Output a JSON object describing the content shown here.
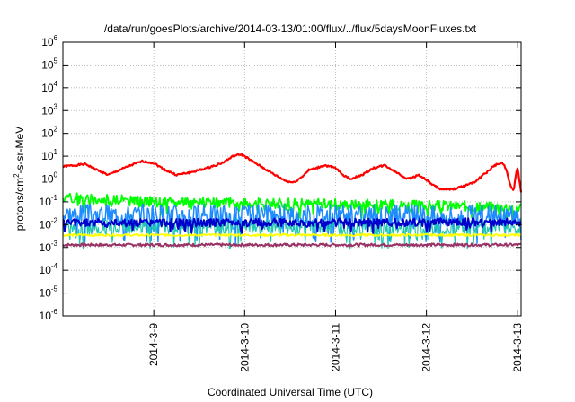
{
  "chart_data": {
    "type": "line",
    "title": "/data/run/goesPlots/archive/2014-03-13/01:00/flux/../flux/5daysMoonFluxes.txt",
    "xlabel": "Coordinated Universal Time (UTC)",
    "ylabel": {
      "base": "protons/cm",
      "exp": "2",
      "rest": "-s-sr-MeV"
    },
    "yscale": "log",
    "ylim": [
      1e-06,
      1000000.0
    ],
    "xlim": [
      "2014-03-08T00:00",
      "2014-03-13T01:00"
    ],
    "grid": true,
    "yticks": [
      {
        "value": 1e-06,
        "base": "10",
        "exp": "-6"
      },
      {
        "value": 1e-05,
        "base": "10",
        "exp": "-5"
      },
      {
        "value": 0.0001,
        "base": "10",
        "exp": "-4"
      },
      {
        "value": 0.001,
        "base": "10",
        "exp": "-3"
      },
      {
        "value": 0.01,
        "base": "10",
        "exp": "-2"
      },
      {
        "value": 0.1,
        "base": "10",
        "exp": "-1"
      },
      {
        "value": 1,
        "base": "10",
        "exp": "0"
      },
      {
        "value": 10,
        "base": "10",
        "exp": "1"
      },
      {
        "value": 100,
        "base": "10",
        "exp": "2"
      },
      {
        "value": 1000,
        "base": "10",
        "exp": "3"
      },
      {
        "value": 10000,
        "base": "10",
        "exp": "4"
      },
      {
        "value": 100000,
        "base": "10",
        "exp": "5"
      },
      {
        "value": 1000000,
        "base": "10",
        "exp": "6"
      }
    ],
    "xticks": [
      {
        "date": "2014-03-09T00:00",
        "label": "2014-3-9"
      },
      {
        "date": "2014-03-10T00:00",
        "label": "2014-3-10"
      },
      {
        "date": "2014-03-11T00:00",
        "label": "2014-3-11"
      },
      {
        "date": "2014-03-12T00:00",
        "label": "2014-3-12"
      },
      {
        "date": "2014-03-13T00:00",
        "label": "2014-3-13"
      }
    ],
    "series": [
      {
        "color": "#ff0000",
        "width": 2.2,
        "baseline": 2.0,
        "jitter": 0.08,
        "seed": 1,
        "points": [
          [
            "2014-03-08T00:00",
            3.5
          ],
          [
            "2014-03-08T03:00",
            4.0
          ],
          [
            "2014-03-08T06:00",
            4.5
          ],
          [
            "2014-03-08T09:00",
            2.5
          ],
          [
            "2014-03-08T12:00",
            1.5
          ],
          [
            "2014-03-08T15:00",
            2.5
          ],
          [
            "2014-03-08T18:00",
            4.0
          ],
          [
            "2014-03-08T21:00",
            6.0
          ],
          [
            "2014-03-09T00:00",
            5.0
          ],
          [
            "2014-03-09T03:00",
            2.5
          ],
          [
            "2014-03-09T06:00",
            1.5
          ],
          [
            "2014-03-09T10:00",
            2.0
          ],
          [
            "2014-03-09T14:00",
            3.0
          ],
          [
            "2014-03-09T18:00",
            5.0
          ],
          [
            "2014-03-09T21:00",
            10.0
          ],
          [
            "2014-03-09T23:00",
            12.0
          ],
          [
            "2014-03-10T00:00",
            10.0
          ],
          [
            "2014-03-10T02:00",
            6.0
          ],
          [
            "2014-03-10T05:00",
            3.0
          ],
          [
            "2014-03-10T08:00",
            1.5
          ],
          [
            "2014-03-10T11:00",
            0.8
          ],
          [
            "2014-03-10T13:00",
            0.7
          ],
          [
            "2014-03-10T15:00",
            1.2
          ],
          [
            "2014-03-10T17:00",
            2.5
          ],
          [
            "2014-03-10T19:00",
            3.0
          ],
          [
            "2014-03-10T21:00",
            4.0
          ],
          [
            "2014-03-11T00:00",
            3.0
          ],
          [
            "2014-03-11T02:00",
            1.5
          ],
          [
            "2014-03-11T04:00",
            1.0
          ],
          [
            "2014-03-11T07:00",
            1.5
          ],
          [
            "2014-03-11T10:00",
            3.0
          ],
          [
            "2014-03-11T13:00",
            4.0
          ],
          [
            "2014-03-11T16:00",
            2.0
          ],
          [
            "2014-03-11T19:00",
            1.0
          ],
          [
            "2014-03-11T22:00",
            1.5
          ],
          [
            "2014-03-12T00:00",
            0.9
          ],
          [
            "2014-03-12T02:00",
            0.5
          ],
          [
            "2014-03-12T04:00",
            0.35
          ],
          [
            "2014-03-12T07:00",
            0.35
          ],
          [
            "2014-03-12T10:00",
            0.5
          ],
          [
            "2014-03-12T13:00",
            0.8
          ],
          [
            "2014-03-12T16:00",
            2.0
          ],
          [
            "2014-03-12T18:00",
            4.0
          ],
          [
            "2014-03-12T20:00",
            5.0
          ],
          [
            "2014-03-12T21:00",
            3.0
          ],
          [
            "2014-03-12T22:00",
            0.6
          ],
          [
            "2014-03-12T23:00",
            0.3
          ],
          [
            "2014-03-13T00:00",
            3.5
          ],
          [
            "2014-03-13T00:30",
            1.0
          ],
          [
            "2014-03-13T01:00",
            0.25
          ]
        ]
      },
      {
        "color": "#00ff00",
        "width": 1.8,
        "baseline": 0.09,
        "jitter": 0.45,
        "seed": 2,
        "points": [
          [
            "2014-03-08T00:00",
            0.16
          ],
          [
            "2014-03-09T00:00",
            0.1
          ],
          [
            "2014-03-10T00:00",
            0.09
          ],
          [
            "2014-03-11T00:00",
            0.08
          ],
          [
            "2014-03-12T00:00",
            0.07
          ],
          [
            "2014-03-13T01:00",
            0.06
          ]
        ]
      },
      {
        "color": "#1e8cff",
        "width": 1.5,
        "baseline": 0.028,
        "jitter": 0.9,
        "seed": 3,
        "points": [
          [
            "2014-03-08T00:00",
            0.03
          ],
          [
            "2014-03-13T01:00",
            0.025
          ]
        ]
      },
      {
        "color": "#20c8b0",
        "width": 1.2,
        "baseline": 0.009,
        "jitter": 0.7,
        "seed": 4,
        "points": [
          [
            "2014-03-08T00:00",
            0.008
          ],
          [
            "2014-03-13T01:00",
            0.008
          ]
        ]
      },
      {
        "color": "#0000cc",
        "width": 2.0,
        "baseline": 0.013,
        "jitter": 0.35,
        "seed": 5,
        "points": [
          [
            "2014-03-08T00:00",
            0.012
          ],
          [
            "2014-03-13T01:00",
            0.013
          ]
        ]
      },
      {
        "color": "#ffff00",
        "width": 1.8,
        "baseline": 0.0035,
        "jitter": 0.1,
        "seed": 6,
        "points": [
          [
            "2014-03-08T00:00",
            0.0035
          ],
          [
            "2014-03-13T01:00",
            0.0035
          ]
        ]
      },
      {
        "color": "#993366",
        "width": 2.0,
        "baseline": 0.0013,
        "jitter": 0.12,
        "seed": 7,
        "points": [
          [
            "2014-03-08T00:00",
            0.0013
          ],
          [
            "2014-03-13T01:00",
            0.0013
          ]
        ]
      }
    ]
  }
}
